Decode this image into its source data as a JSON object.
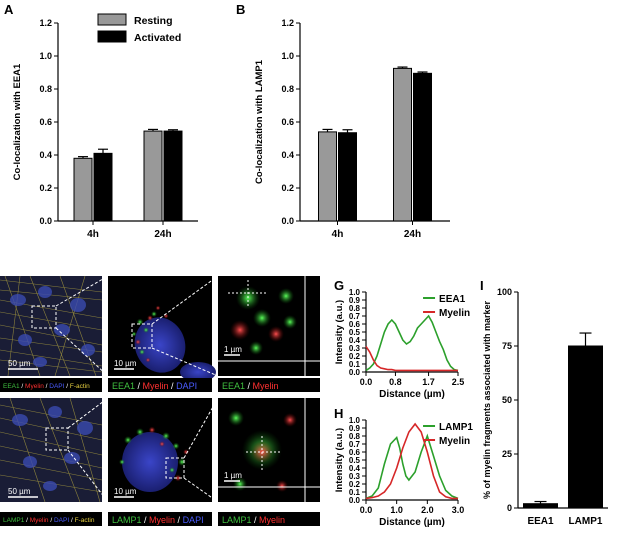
{
  "panels": {
    "A": "A",
    "B": "B",
    "C": "C",
    "D": "D",
    "E": "E",
    "F": "F",
    "G": "G",
    "H": "H",
    "I": "I"
  },
  "chart_data": [
    {
      "id": "A",
      "type": "bar",
      "categories": [
        "4h",
        "24h"
      ],
      "series": [
        {
          "name": "Resting",
          "values": [
            0.38,
            0.545
          ],
          "errors": [
            0.01,
            0.01
          ]
        },
        {
          "name": "Activated",
          "values": [
            0.41,
            0.545
          ],
          "errors": [
            0.025,
            0.008
          ]
        }
      ],
      "ylabel": "Co-localization with EEA1",
      "ylim": [
        0,
        1.2
      ],
      "yticks": [
        "0.0",
        "0.2",
        "0.4",
        "0.6",
        "0.8",
        "1.0",
        "1.2"
      ],
      "legend_position": "top",
      "colors": {
        "Resting": "#999999",
        "Activated": "#000000"
      }
    },
    {
      "id": "B",
      "type": "bar",
      "categories": [
        "4h",
        "24h"
      ],
      "series": [
        {
          "name": "Resting",
          "values": [
            0.54,
            0.925
          ],
          "errors": [
            0.015,
            0.008
          ]
        },
        {
          "name": "Activated",
          "values": [
            0.535,
            0.895
          ],
          "errors": [
            0.018,
            0.008
          ]
        }
      ],
      "ylabel": "Co-localization with LAMP1",
      "ylim": [
        0,
        1.2
      ],
      "yticks": [
        "0.0",
        "0.2",
        "0.4",
        "0.6",
        "0.8",
        "1.0",
        "1.2"
      ]
    },
    {
      "id": "G",
      "type": "line",
      "xlabel": "Distance (µm)",
      "ylabel": "Intensity (a.u.)",
      "xlim": [
        0,
        2.5
      ],
      "ylim": [
        0,
        1.0
      ],
      "xticks": [
        "0.0",
        "0.8",
        "1.7",
        "2.5"
      ],
      "yticks": [
        "0.0",
        "0.1",
        "0.2",
        "0.3",
        "0.4",
        "0.5",
        "0.6",
        "0.7",
        "0.8",
        "0.9",
        "1.0"
      ],
      "series": [
        {
          "name": "EEA1",
          "color": "#2ca02c",
          "x": [
            0,
            0.1,
            0.2,
            0.3,
            0.4,
            0.5,
            0.6,
            0.7,
            0.8,
            0.9,
            1.0,
            1.1,
            1.2,
            1.3,
            1.4,
            1.5,
            1.6,
            1.7,
            1.8,
            1.9,
            2.0,
            2.1,
            2.2,
            2.3,
            2.4,
            2.5
          ],
          "y": [
            0.02,
            0.05,
            0.1,
            0.2,
            0.35,
            0.5,
            0.6,
            0.65,
            0.6,
            0.5,
            0.4,
            0.35,
            0.38,
            0.45,
            0.55,
            0.6,
            0.65,
            0.7,
            0.62,
            0.5,
            0.38,
            0.28,
            0.15,
            0.07,
            0.03,
            0.02
          ]
        },
        {
          "name": "Myelin",
          "color": "#d62728",
          "x": [
            0,
            0.1,
            0.2,
            0.3,
            0.4,
            0.5,
            0.6,
            0.7,
            0.8,
            0.9,
            1.0,
            1.2,
            1.4,
            1.6,
            1.8,
            2.0,
            2.2,
            2.5
          ],
          "y": [
            0.32,
            0.25,
            0.15,
            0.08,
            0.05,
            0.04,
            0.03,
            0.03,
            0.02,
            0.02,
            0.02,
            0.02,
            0.02,
            0.02,
            0.02,
            0.02,
            0.02,
            0.02
          ]
        }
      ]
    },
    {
      "id": "H",
      "type": "line",
      "xlabel": "Distance (µm)",
      "ylabel": "Intensity (a.u.)",
      "xlim": [
        0,
        3.0
      ],
      "ylim": [
        0,
        1.0
      ],
      "xticks": [
        "0.0",
        "1.0",
        "2.0",
        "3.0"
      ],
      "yticks": [
        "0.0",
        "0.1",
        "0.2",
        "0.3",
        "0.4",
        "0.5",
        "0.6",
        "0.7",
        "0.8",
        "0.9",
        "1.0"
      ],
      "series": [
        {
          "name": "LAMP1",
          "color": "#2ca02c",
          "x": [
            0,
            0.2,
            0.4,
            0.6,
            0.8,
            1.0,
            1.1,
            1.2,
            1.3,
            1.4,
            1.6,
            1.8,
            2.0,
            2.2,
            2.4,
            2.6,
            2.8,
            3.0
          ],
          "y": [
            0.02,
            0.05,
            0.15,
            0.45,
            0.7,
            0.78,
            0.65,
            0.45,
            0.3,
            0.25,
            0.35,
            0.6,
            0.8,
            0.55,
            0.3,
            0.12,
            0.05,
            0.02
          ]
        },
        {
          "name": "Myelin",
          "color": "#d62728",
          "x": [
            0,
            0.2,
            0.4,
            0.6,
            0.8,
            1.0,
            1.2,
            1.4,
            1.6,
            1.8,
            2.0,
            2.2,
            2.4,
            2.6,
            2.8,
            3.0
          ],
          "y": [
            0.02,
            0.03,
            0.05,
            0.1,
            0.2,
            0.4,
            0.65,
            0.85,
            0.95,
            0.85,
            0.6,
            0.3,
            0.1,
            0.04,
            0.02,
            0.02
          ]
        }
      ]
    },
    {
      "id": "I",
      "type": "bar",
      "categories": [
        "EEA1",
        "LAMP1"
      ],
      "values": [
        2,
        75
      ],
      "errors": [
        1,
        6
      ],
      "ylabel": "% of myelin fragments associated with marker",
      "ylim": [
        0,
        100
      ],
      "yticks": [
        "0",
        "25",
        "50",
        "75",
        "100"
      ],
      "color": "#000000"
    }
  ],
  "micrographs": {
    "C": {
      "scale": "50 µm",
      "caption": [
        "EEA1",
        " / ",
        "Myelin",
        " / ",
        "DAPI",
        " / ",
        "F-actin"
      ]
    },
    "D": {
      "scale": "50 µm",
      "caption": [
        "LAMP1",
        " / ",
        "Myelin",
        " / ",
        "DAPI",
        " / ",
        "F-actin"
      ]
    },
    "E": {
      "scale": "10 µm",
      "caption": [
        "EEA1",
        " / ",
        "Myelin",
        " / ",
        "DAPI"
      ]
    },
    "F": {
      "scale": "10 µm",
      "caption": [
        "LAMP1",
        " / ",
        "Myelin",
        " / ",
        "DAPI"
      ]
    },
    "E2": {
      "scale": "1 µm",
      "caption": [
        "EEA1",
        " / ",
        "Myelin"
      ]
    },
    "F2": {
      "scale": "1 µm",
      "caption": [
        "LAMP1",
        " / ",
        "Myelin"
      ]
    }
  },
  "caption_colors": {
    "EEA1": "#3fbf3f",
    "LAMP1": "#3fbf3f",
    "Myelin": "#ff3030",
    "DAPI": "#4a5cff",
    "F-actin": "#e8d040",
    " / ": "#ffffff"
  }
}
